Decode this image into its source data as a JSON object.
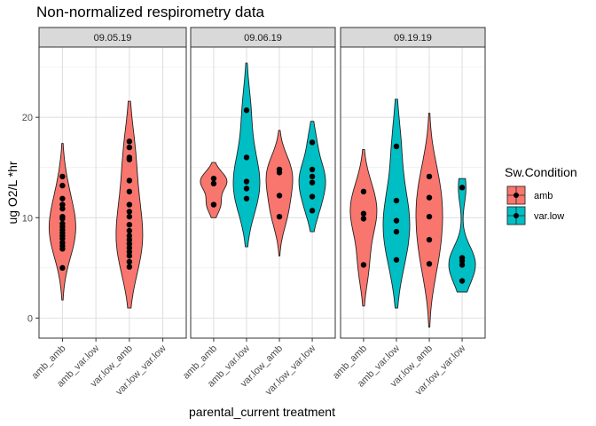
{
  "chart_data": {
    "type": "violin",
    "title": "Non-normalized respirometry data",
    "xlabel": "parental_current treatment",
    "ylabel": "ug O2/L *hr",
    "ylim": [
      -2,
      27
    ],
    "y_ticks": [
      0,
      10,
      20
    ],
    "grid": true,
    "legend": {
      "title": "Sw.Condition",
      "position": "right",
      "entries": [
        {
          "name": "amb",
          "color": "#F8766D"
        },
        {
          "name": "var.low",
          "color": "#00BFC4"
        }
      ]
    },
    "panels": [
      {
        "label": "09.05.19",
        "categories": [
          "amb_amb",
          "amb_var.low",
          "var.low_amb",
          "var.low_var.low"
        ],
        "groups": [
          {
            "category": "amb_amb",
            "condition": "amb",
            "min": 1.8,
            "max": 17.4,
            "peak": 9.5,
            "points": [
              14.1,
              13.2,
              11.9,
              11.3,
              10.9,
              10.1,
              9.9,
              9.4,
              9.1,
              8.8,
              8.5,
              8.2,
              7.9,
              7.5,
              7.2,
              6.9,
              5.0
            ]
          },
          {
            "category": "var.low_amb",
            "condition": "amb",
            "min": 1.0,
            "max": 21.6,
            "peak": 8.0,
            "points": [
              17.6,
              17.0,
              16.0,
              15.8,
              13.7,
              12.6,
              11.3,
              10.6,
              10.1,
              9.3,
              8.7,
              8.2,
              7.8,
              7.4,
              7.0,
              6.6,
              6.2,
              5.6,
              5.1
            ]
          }
        ]
      },
      {
        "label": "09.06.19",
        "categories": [
          "amb_amb",
          "amb_var.low",
          "var.low_amb",
          "var.low_var.low"
        ],
        "groups": [
          {
            "category": "amb_amb",
            "condition": "amb",
            "min": 10.0,
            "max": 15.5,
            "peak": 13.2,
            "points": [
              13.9,
              13.4,
              11.3
            ]
          },
          {
            "category": "amb_var.low",
            "condition": "var.low",
            "min": 7.1,
            "max": 25.4,
            "peak": 13.0,
            "points": [
              20.7,
              16.0,
              13.6,
              12.9,
              11.9
            ]
          },
          {
            "category": "var.low_amb",
            "condition": "amb",
            "min": 6.2,
            "max": 18.7,
            "peak": 14.3,
            "points": [
              14.8,
              14.5,
              12.2,
              10.1
            ]
          },
          {
            "category": "var.low_var.low",
            "condition": "var.low",
            "min": 8.6,
            "max": 19.6,
            "peak": 14.0,
            "points": [
              17.5,
              14.8,
              14.1,
              13.5,
              12.1,
              10.7
            ]
          }
        ]
      },
      {
        "label": "09.19.19",
        "categories": [
          "amb_amb",
          "amb_var.low",
          "var.low_amb",
          "var.low_var.low"
        ],
        "groups": [
          {
            "category": "amb_amb",
            "condition": "amb",
            "min": 1.2,
            "max": 16.8,
            "peak": 10.5,
            "points": [
              12.6,
              10.4,
              9.9,
              5.3
            ]
          },
          {
            "category": "amb_var.low",
            "condition": "var.low",
            "min": 1.0,
            "max": 21.8,
            "peak": 10.0,
            "points": [
              17.1,
              11.7,
              9.7,
              8.6,
              5.8
            ]
          },
          {
            "category": "var.low_amb",
            "condition": "amb",
            "min": -0.9,
            "max": 20.4,
            "peak": 9.5,
            "points": [
              14.1,
              12.0,
              10.1,
              7.8,
              5.4
            ]
          },
          {
            "category": "var.low_var.low",
            "condition": "var.low",
            "min": 2.6,
            "max": 13.9,
            "peak": 5.5,
            "points": [
              13.0,
              6.0,
              5.7,
              5.3,
              3.7
            ]
          }
        ]
      }
    ]
  }
}
